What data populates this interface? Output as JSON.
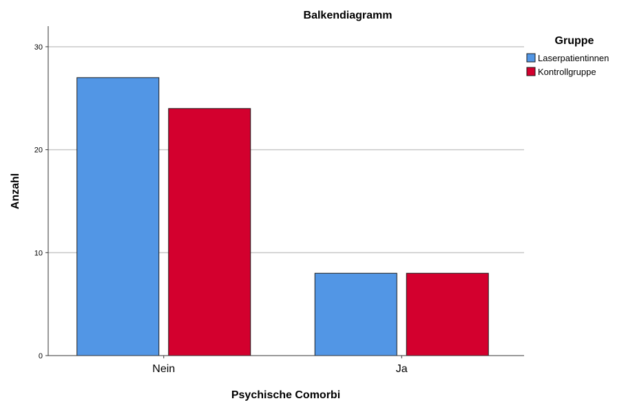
{
  "chart_data": {
    "type": "bar",
    "title": "Balkendiagramm",
    "xlabel": "Psychische Comorbi",
    "ylabel": "Anzahl",
    "categories": [
      "Nein",
      "Ja"
    ],
    "series": [
      {
        "name": "Laserpatientinnen",
        "values": [
          27,
          8
        ],
        "color": "#5296e5"
      },
      {
        "name": "Kontrollgruppe",
        "values": [
          24,
          8
        ],
        "color": "#d3002e"
      }
    ],
    "ylim": [
      0,
      32
    ],
    "yticks": [
      0,
      10,
      20,
      30
    ],
    "grid": true,
    "legend": {
      "title": "Gruppe",
      "position": "right"
    }
  }
}
